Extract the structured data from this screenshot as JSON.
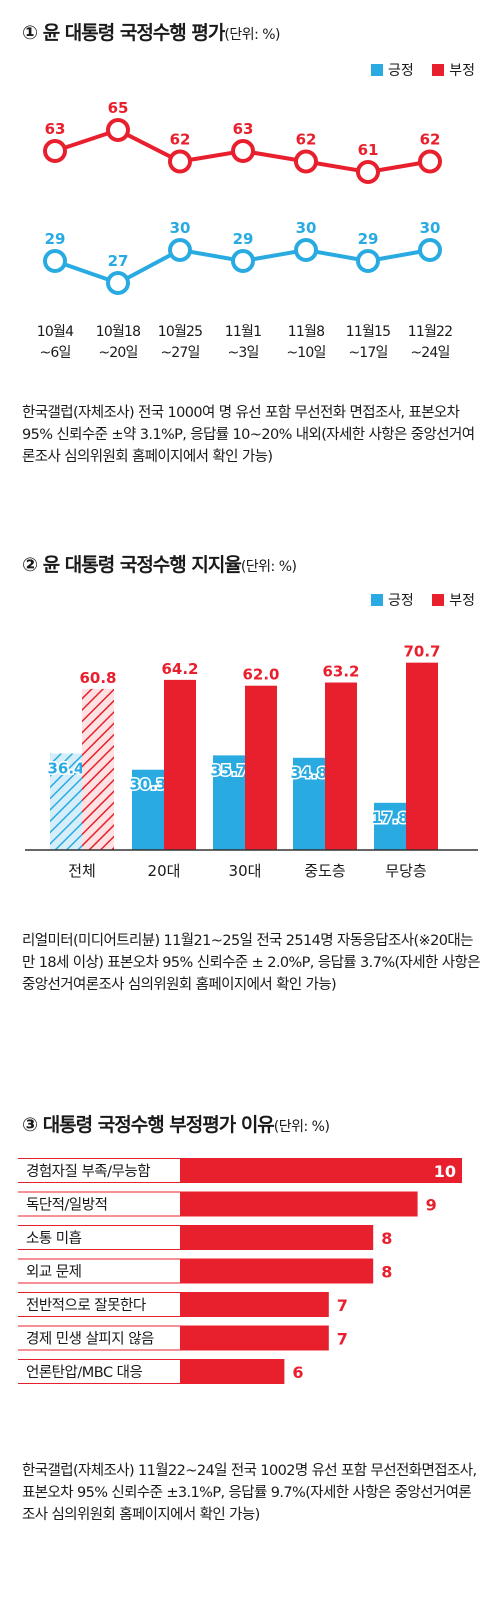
{
  "colors": {
    "positive": "#29abe2",
    "negative": "#e8202e"
  },
  "legend": {
    "positive": "긍정",
    "negative": "부정"
  },
  "section1": {
    "title": "① 윤 대통령 국정수행 평가",
    "unit": "(단위: %)",
    "periods": [
      {
        "line1": "10월4",
        "line2": "~6일"
      },
      {
        "line1": "10월18",
        "line2": "~20일"
      },
      {
        "line1": "10월25",
        "line2": "~27일"
      },
      {
        "line1": "11월1",
        "line2": "~3일"
      },
      {
        "line1": "11월8",
        "line2": "~10일"
      },
      {
        "line1": "11월15",
        "line2": "~17일"
      },
      {
        "line1": "11월22",
        "line2": "~24일"
      }
    ],
    "note": "한국갤럽(자체조사) 전국 1000여 명 유선 포함 무선전화 면접조사, 표본오차 95% 신뢰수준 ±약 3.1%P, 응답률 10~20% 내외(자세한 사항은 중앙선거여론조사 심의위원회 홈페이지에서 확인 가능)"
  },
  "section2": {
    "title": "② 윤 대통령 국정수행 지지율",
    "unit": "(단위: %)",
    "note": "리얼미터(미디어트리뷴) 11월21~25일 전국 2514명 자동응답조사(※20대는 만 18세 이상) 표본오차 95% 신뢰수준 ± 2.0%P, 응답률 3.7%(자세한 사항은 중앙선거여론조사 심의위원회 홈페이지에서 확인 가능)"
  },
  "section3": {
    "title": "③ 대통령 국정수행 부정평가 이유",
    "unit": "(단위: %)",
    "note": "한국갤럽(자체조사) 11월22~24일 전국 1002명 유선 포함 무선전화면접조사, 표본오차 95% 신뢰수준 ±3.1%P, 응답률 9.7%(자세한 사항은 중앙선거여론조사 심의위원회 홈페이지에서 확인 가능)"
  },
  "chart_data": [
    {
      "type": "line",
      "categories": [
        "10월4~6일",
        "10월18~20일",
        "10월25~27일",
        "11월1~3일",
        "11월8~10일",
        "11월15~17일",
        "11월22~24일"
      ],
      "series": [
        {
          "name": "긍정",
          "values": [
            29,
            27,
            30,
            29,
            30,
            29,
            30
          ]
        },
        {
          "name": "부정",
          "values": [
            63,
            65,
            62,
            63,
            62,
            61,
            62
          ]
        }
      ],
      "legend": "top-right",
      "grid": false
    },
    {
      "type": "bar",
      "categories": [
        "전체",
        "20대",
        "30대",
        "중도층",
        "무당층"
      ],
      "series": [
        {
          "name": "긍정",
          "values": [
            36.4,
            30.3,
            35.7,
            34.8,
            17.8
          ]
        },
        {
          "name": "부정",
          "values": [
            60.8,
            64.2,
            62.0,
            63.2,
            70.7
          ]
        }
      ],
      "hatched_category": "전체",
      "ylim": [
        0,
        75
      ],
      "legend": "top-right",
      "grid": false
    },
    {
      "type": "bar",
      "orientation": "horizontal",
      "categories": [
        "경험자질 부족/무능함",
        "독단적/일방적",
        "소통 미흡",
        "외교 문제",
        "전반적으로 잘못한다",
        "경제 민생 살피지 않음",
        "언론탄압/MBC 대응"
      ],
      "values": [
        10,
        9,
        8,
        8,
        7,
        7,
        6
      ],
      "xlim": [
        0,
        10
      ],
      "grid": false
    }
  ]
}
